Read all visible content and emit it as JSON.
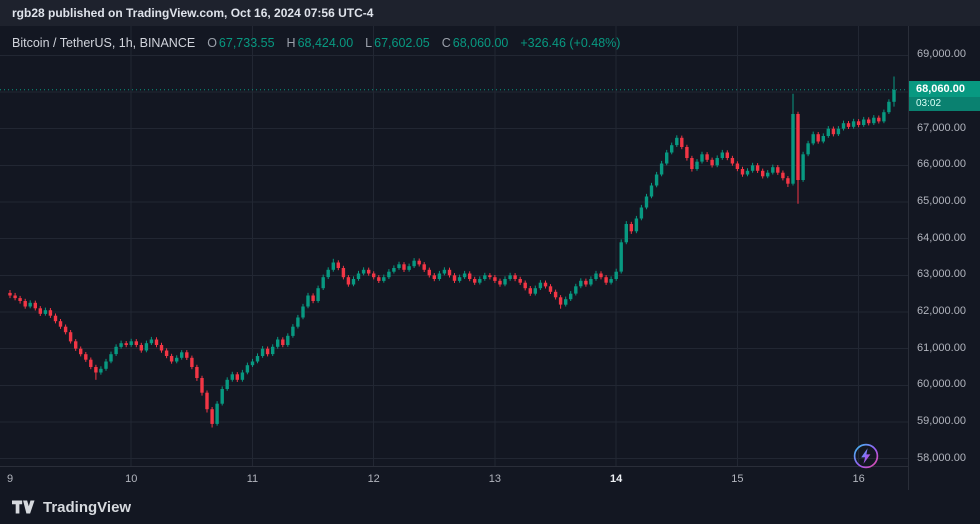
{
  "top_bar": {
    "text": "rgb28 published on TradingView.com, Oct 16, 2024 07:56 UTC-4"
  },
  "legend": {
    "symbol": "Bitcoin / TetherUS, 1h, BINANCE",
    "o_label": "O",
    "o": "67,733.55",
    "h_label": "H",
    "h": "68,424.00",
    "l_label": "L",
    "l": "67,602.05",
    "c_label": "C",
    "c": "68,060.00",
    "change": "+326.46 (+0.48%)"
  },
  "price_axis": {
    "labels": [
      "69,000.00",
      "68,000.00",
      "67,000.00",
      "66,000.00",
      "65,000.00",
      "64,000.00",
      "63,000.00",
      "62,000.00",
      "61,000.00",
      "60,000.00",
      "59,000.00",
      "58,000.00"
    ],
    "last_price_label": "68,060.00",
    "countdown": "03:02"
  },
  "footer": {
    "brand": "TradingView"
  },
  "icons": {
    "boost": "lightning-bolt-icon",
    "brand_mark": "tradingview-mark-icon"
  },
  "colors": {
    "background": "#131722",
    "topbar": "#1e222d",
    "up": "#089981",
    "down": "#f23645",
    "grid": "#222733",
    "axis_border": "#2a2e39",
    "axis_text": "#b2b5be"
  },
  "chart_data": {
    "type": "candlestick",
    "title": "Bitcoin / TetherUS, 1h, BINANCE",
    "timeframe": "1h",
    "ylim": [
      57800,
      69800
    ],
    "grid_prices": [
      69000,
      68000,
      67000,
      66000,
      65000,
      64000,
      63000,
      62000,
      61000,
      60000,
      59000,
      58000
    ],
    "last_price": 68060,
    "x_labels": [
      "9",
      "10",
      "11",
      "12",
      "13",
      "14",
      "15",
      "16"
    ],
    "x_label_indices": [
      0,
      24,
      48,
      72,
      96,
      120,
      144,
      168
    ],
    "x_label_bold": [
      false,
      false,
      false,
      false,
      false,
      true,
      false,
      false
    ],
    "candles": [
      [
        62520,
        62600,
        62380,
        62450
      ],
      [
        62450,
        62520,
        62320,
        62380
      ],
      [
        62380,
        62440,
        62230,
        62300
      ],
      [
        62300,
        62360,
        62090,
        62150
      ],
      [
        62150,
        62320,
        62100,
        62250
      ],
      [
        62250,
        62310,
        62040,
        62100
      ],
      [
        62100,
        62160,
        61890,
        61950
      ],
      [
        61950,
        62120,
        61900,
        62050
      ],
      [
        62050,
        62110,
        61840,
        61900
      ],
      [
        61900,
        61960,
        61690,
        61750
      ],
      [
        61750,
        61810,
        61540,
        61600
      ],
      [
        61600,
        61660,
        61390,
        61450
      ],
      [
        61450,
        61510,
        61140,
        61200
      ],
      [
        61200,
        61260,
        60940,
        61000
      ],
      [
        61000,
        61060,
        60790,
        60850
      ],
      [
        60850,
        60910,
        60640,
        60700
      ],
      [
        60700,
        60760,
        60440,
        60500
      ],
      [
        60500,
        60560,
        60150,
        60350
      ],
      [
        60350,
        60520,
        60290,
        60450
      ],
      [
        60450,
        60720,
        60400,
        60650
      ],
      [
        60650,
        60920,
        60600,
        60850
      ],
      [
        60850,
        61120,
        60800,
        61050
      ],
      [
        61050,
        61220,
        61000,
        61150
      ],
      [
        61150,
        61210,
        61040,
        61100
      ],
      [
        61100,
        61270,
        61050,
        61200
      ],
      [
        61200,
        61260,
        61040,
        61100
      ],
      [
        61100,
        61160,
        60890,
        60950
      ],
      [
        60950,
        61220,
        60900,
        61150
      ],
      [
        61150,
        61320,
        61100,
        61250
      ],
      [
        61250,
        61310,
        61040,
        61100
      ],
      [
        61100,
        61160,
        60890,
        60950
      ],
      [
        60950,
        61010,
        60740,
        60800
      ],
      [
        60800,
        60860,
        60590,
        60650
      ],
      [
        60650,
        60820,
        60600,
        60750
      ],
      [
        60750,
        60960,
        60700,
        60900
      ],
      [
        60900,
        60960,
        60690,
        60750
      ],
      [
        60750,
        60810,
        60440,
        60500
      ],
      [
        60500,
        60560,
        60120,
        60200
      ],
      [
        60200,
        60260,
        59720,
        59800
      ],
      [
        59800,
        59860,
        59260,
        59350
      ],
      [
        59350,
        59410,
        58850,
        58950
      ],
      [
        58950,
        59570,
        58900,
        59500
      ],
      [
        59500,
        59970,
        59450,
        59900
      ],
      [
        59900,
        60220,
        59850,
        60150
      ],
      [
        60150,
        60370,
        60100,
        60300
      ],
      [
        60300,
        60360,
        60090,
        60150
      ],
      [
        60150,
        60420,
        60100,
        60350
      ],
      [
        60350,
        60620,
        60300,
        60550
      ],
      [
        60550,
        60720,
        60500,
        60650
      ],
      [
        60650,
        60870,
        60600,
        60800
      ],
      [
        60800,
        61070,
        60750,
        61000
      ],
      [
        61000,
        61060,
        60790,
        60850
      ],
      [
        60850,
        61120,
        60800,
        61050
      ],
      [
        61050,
        61320,
        61000,
        61250
      ],
      [
        61250,
        61310,
        61040,
        61100
      ],
      [
        61100,
        61420,
        61050,
        61350
      ],
      [
        61350,
        61670,
        61300,
        61600
      ],
      [
        61600,
        61920,
        61550,
        61850
      ],
      [
        61850,
        62220,
        61800,
        62150
      ],
      [
        62150,
        62520,
        62100,
        62450
      ],
      [
        62450,
        62510,
        62240,
        62300
      ],
      [
        62300,
        62720,
        62250,
        62650
      ],
      [
        62650,
        63020,
        62600,
        62950
      ],
      [
        62950,
        63220,
        62900,
        63150
      ],
      [
        63150,
        63450,
        63100,
        63350
      ],
      [
        63350,
        63410,
        63140,
        63200
      ],
      [
        63200,
        63260,
        62890,
        62950
      ],
      [
        62950,
        63010,
        62690,
        62750
      ],
      [
        62750,
        62970,
        62700,
        62900
      ],
      [
        62900,
        63120,
        62850,
        63050
      ],
      [
        63050,
        63220,
        63000,
        63150
      ],
      [
        63150,
        63210,
        62990,
        63050
      ],
      [
        63050,
        63110,
        62890,
        62950
      ],
      [
        62950,
        63010,
        62790,
        62850
      ],
      [
        62850,
        63020,
        62800,
        62950
      ],
      [
        62950,
        63170,
        62900,
        63100
      ],
      [
        63100,
        63270,
        63050,
        63200
      ],
      [
        63200,
        63370,
        63150,
        63300
      ],
      [
        63300,
        63360,
        63090,
        63150
      ],
      [
        63150,
        63320,
        63100,
        63250
      ],
      [
        63250,
        63470,
        63200,
        63400
      ],
      [
        63400,
        63460,
        63240,
        63300
      ],
      [
        63300,
        63360,
        63090,
        63150
      ],
      [
        63150,
        63210,
        62940,
        63000
      ],
      [
        63000,
        63060,
        62840,
        62900
      ],
      [
        62900,
        63120,
        62850,
        63050
      ],
      [
        63050,
        63220,
        63000,
        63150
      ],
      [
        63150,
        63210,
        62940,
        63000
      ],
      [
        63000,
        63060,
        62790,
        62850
      ],
      [
        62850,
        63020,
        62800,
        62950
      ],
      [
        62950,
        63120,
        62900,
        63050
      ],
      [
        63050,
        63110,
        62840,
        62900
      ],
      [
        62900,
        62960,
        62740,
        62800
      ],
      [
        62800,
        62970,
        62750,
        62900
      ],
      [
        62900,
        63070,
        62850,
        63000
      ],
      [
        63000,
        63060,
        62890,
        62950
      ],
      [
        62950,
        63010,
        62790,
        62850
      ],
      [
        62850,
        62910,
        62690,
        62750
      ],
      [
        62750,
        62970,
        62700,
        62900
      ],
      [
        62900,
        63070,
        62850,
        63000
      ],
      [
        63000,
        63060,
        62840,
        62900
      ],
      [
        62900,
        62960,
        62740,
        62800
      ],
      [
        62800,
        62860,
        62590,
        62650
      ],
      [
        62650,
        62710,
        62440,
        62500
      ],
      [
        62500,
        62720,
        62450,
        62650
      ],
      [
        62650,
        62870,
        62600,
        62800
      ],
      [
        62800,
        62860,
        62640,
        62700
      ],
      [
        62700,
        62760,
        62490,
        62550
      ],
      [
        62550,
        62610,
        62340,
        62400
      ],
      [
        62400,
        62460,
        62090,
        62200
      ],
      [
        62200,
        62420,
        62150,
        62350
      ],
      [
        62350,
        62570,
        62300,
        62500
      ],
      [
        62500,
        62770,
        62450,
        62700
      ],
      [
        62700,
        62920,
        62650,
        62850
      ],
      [
        62850,
        62910,
        62690,
        62750
      ],
      [
        62750,
        62970,
        62700,
        62900
      ],
      [
        62900,
        63120,
        62850,
        63050
      ],
      [
        63050,
        63110,
        62890,
        62950
      ],
      [
        62950,
        63010,
        62740,
        62800
      ],
      [
        62800,
        62970,
        62750,
        62900
      ],
      [
        62900,
        63180,
        62850,
        63100
      ],
      [
        63100,
        63980,
        63050,
        63900
      ],
      [
        63900,
        64480,
        63850,
        64400
      ],
      [
        64400,
        64460,
        64130,
        64200
      ],
      [
        64200,
        64620,
        64150,
        64550
      ],
      [
        64550,
        64920,
        64500,
        64850
      ],
      [
        64850,
        65220,
        64800,
        65150
      ],
      [
        65150,
        65520,
        65100,
        65450
      ],
      [
        65450,
        65820,
        65400,
        65750
      ],
      [
        65750,
        66120,
        65700,
        66050
      ],
      [
        66050,
        66420,
        66000,
        66350
      ],
      [
        66350,
        66620,
        66300,
        66550
      ],
      [
        66550,
        66820,
        66500,
        66750
      ],
      [
        66750,
        66810,
        66440,
        66500
      ],
      [
        66500,
        66560,
        66130,
        66200
      ],
      [
        66200,
        66260,
        65830,
        65900
      ],
      [
        65900,
        66170,
        65850,
        66100
      ],
      [
        66100,
        66370,
        66050,
        66300
      ],
      [
        66300,
        66360,
        66090,
        66150
      ],
      [
        66150,
        66210,
        65940,
        66000
      ],
      [
        66000,
        66270,
        65950,
        66200
      ],
      [
        66200,
        66420,
        66150,
        66350
      ],
      [
        66350,
        66410,
        66140,
        66200
      ],
      [
        66200,
        66260,
        65990,
        66050
      ],
      [
        66050,
        66110,
        65840,
        65900
      ],
      [
        65900,
        65960,
        65690,
        65750
      ],
      [
        65750,
        65920,
        65700,
        65850
      ],
      [
        65850,
        66070,
        65800,
        66000
      ],
      [
        66000,
        66060,
        65790,
        65850
      ],
      [
        65850,
        65910,
        65640,
        65700
      ],
      [
        65700,
        65870,
        65650,
        65800
      ],
      [
        65800,
        66020,
        65750,
        65950
      ],
      [
        65950,
        66010,
        65740,
        65800
      ],
      [
        65800,
        65860,
        65590,
        65650
      ],
      [
        65650,
        65710,
        65410,
        65500
      ],
      [
        65500,
        67950,
        65450,
        67400
      ],
      [
        67400,
        67460,
        64950,
        65600
      ],
      [
        65600,
        66370,
        65550,
        66300
      ],
      [
        66300,
        66670,
        66250,
        66600
      ],
      [
        66600,
        66920,
        66550,
        66850
      ],
      [
        66850,
        66910,
        66590,
        66650
      ],
      [
        66650,
        66870,
        66600,
        66800
      ],
      [
        66800,
        67070,
        66750,
        67000
      ],
      [
        67000,
        67060,
        66790,
        66850
      ],
      [
        66850,
        67070,
        66800,
        67000
      ],
      [
        67000,
        67220,
        66950,
        67150
      ],
      [
        67150,
        67210,
        66990,
        67050
      ],
      [
        67050,
        67270,
        67000,
        67200
      ],
      [
        67200,
        67260,
        67040,
        67100
      ],
      [
        67100,
        67320,
        67050,
        67250
      ],
      [
        67250,
        67310,
        67090,
        67150
      ],
      [
        67150,
        67370,
        67100,
        67300
      ],
      [
        67300,
        67360,
        67140,
        67200
      ],
      [
        67200,
        67520,
        67150,
        67450
      ],
      [
        67450,
        67800,
        67400,
        67733.55
      ],
      [
        67733.55,
        68424,
        67602.05,
        68060
      ]
    ]
  }
}
